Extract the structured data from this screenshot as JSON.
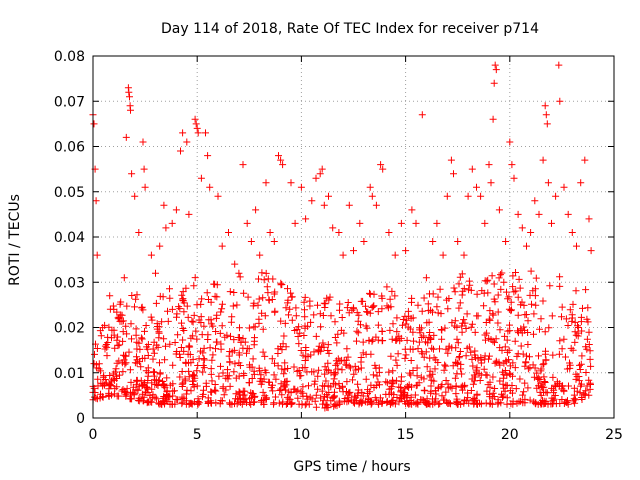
{
  "chart_data": {
    "type": "scatter",
    "title": "Day 114 of 2018, Rate Of TEC Index for receiver p714",
    "xlabel": "GPS time / hours",
    "ylabel": "ROTI / TECUs",
    "xlim": [
      0,
      25
    ],
    "ylim": [
      0,
      0.08
    ],
    "grid": true,
    "marker": "+",
    "color": "#ff0000",
    "x_ticks": [
      {
        "value": 0,
        "label": "0"
      },
      {
        "value": 5,
        "label": "5"
      },
      {
        "value": 10,
        "label": "10"
      },
      {
        "value": 15,
        "label": "15"
      },
      {
        "value": 20,
        "label": "20"
      },
      {
        "value": 25,
        "label": "25"
      }
    ],
    "y_ticks": [
      {
        "value": 0,
        "label": "0"
      },
      {
        "value": 0.01,
        "label": "0.01"
      },
      {
        "value": 0.02,
        "label": "0.02"
      },
      {
        "value": 0.03,
        "label": "0.03"
      },
      {
        "value": 0.04,
        "label": "0.04"
      },
      {
        "value": 0.05,
        "label": "0.05"
      },
      {
        "value": 0.06,
        "label": "0.06"
      },
      {
        "value": 0.07,
        "label": "0.07"
      },
      {
        "value": 0.08,
        "label": "0.08"
      }
    ],
    "series": [
      {
        "name": "ROTI",
        "points": [
          [
            0.0,
            0.067
          ],
          [
            0.05,
            0.065
          ],
          [
            0.1,
            0.055
          ],
          [
            0.15,
            0.048
          ],
          [
            0.2,
            0.036
          ],
          [
            0.3,
            0.012
          ],
          [
            0.5,
            0.009
          ],
          [
            0.8,
            0.027
          ],
          [
            1.0,
            0.024
          ],
          [
            1.2,
            0.016
          ],
          [
            1.5,
            0.031
          ],
          [
            1.6,
            0.062
          ],
          [
            1.7,
            0.073
          ],
          [
            1.72,
            0.072
          ],
          [
            1.75,
            0.071
          ],
          [
            1.78,
            0.069
          ],
          [
            1.8,
            0.068
          ],
          [
            1.85,
            0.054
          ],
          [
            2.0,
            0.049
          ],
          [
            2.2,
            0.041
          ],
          [
            2.4,
            0.061
          ],
          [
            2.45,
            0.055
          ],
          [
            2.5,
            0.051
          ],
          [
            2.8,
            0.036
          ],
          [
            3.0,
            0.032
          ],
          [
            3.2,
            0.038
          ],
          [
            3.4,
            0.047
          ],
          [
            3.5,
            0.042
          ],
          [
            3.8,
            0.043
          ],
          [
            4.0,
            0.046
          ],
          [
            4.2,
            0.059
          ],
          [
            4.3,
            0.063
          ],
          [
            4.5,
            0.061
          ],
          [
            4.6,
            0.045
          ],
          [
            4.9,
            0.066
          ],
          [
            4.95,
            0.065
          ],
          [
            5.0,
            0.064
          ],
          [
            5.05,
            0.063
          ],
          [
            5.2,
            0.053
          ],
          [
            5.4,
            0.063
          ],
          [
            5.5,
            0.058
          ],
          [
            5.6,
            0.051
          ],
          [
            6.0,
            0.049
          ],
          [
            6.2,
            0.038
          ],
          [
            6.5,
            0.041
          ],
          [
            6.8,
            0.034
          ],
          [
            7.0,
            0.032
          ],
          [
            7.2,
            0.056
          ],
          [
            7.4,
            0.043
          ],
          [
            7.6,
            0.039
          ],
          [
            7.8,
            0.046
          ],
          [
            8.0,
            0.036
          ],
          [
            8.3,
            0.052
          ],
          [
            8.5,
            0.041
          ],
          [
            8.7,
            0.039
          ],
          [
            8.9,
            0.058
          ],
          [
            9.0,
            0.057
          ],
          [
            9.1,
            0.056
          ],
          [
            9.5,
            0.052
          ],
          [
            9.7,
            0.043
          ],
          [
            10.0,
            0.051
          ],
          [
            10.2,
            0.044
          ],
          [
            10.5,
            0.048
          ],
          [
            10.7,
            0.053
          ],
          [
            10.9,
            0.054
          ],
          [
            11.0,
            0.055
          ],
          [
            11.1,
            0.047
          ],
          [
            11.3,
            0.049
          ],
          [
            11.5,
            0.042
          ],
          [
            11.8,
            0.041
          ],
          [
            12.0,
            0.036
          ],
          [
            12.3,
            0.047
          ],
          [
            12.5,
            0.037
          ],
          [
            12.8,
            0.043
          ],
          [
            13.0,
            0.039
          ],
          [
            13.3,
            0.051
          ],
          [
            13.4,
            0.049
          ],
          [
            13.6,
            0.047
          ],
          [
            13.8,
            0.056
          ],
          [
            13.9,
            0.055
          ],
          [
            14.2,
            0.041
          ],
          [
            14.5,
            0.036
          ],
          [
            14.8,
            0.043
          ],
          [
            15.0,
            0.037
          ],
          [
            15.3,
            0.046
          ],
          [
            15.5,
            0.043
          ],
          [
            15.8,
            0.067
          ],
          [
            16.0,
            0.031
          ],
          [
            16.3,
            0.039
          ],
          [
            16.5,
            0.043
          ],
          [
            16.8,
            0.036
          ],
          [
            17.0,
            0.049
          ],
          [
            17.2,
            0.057
          ],
          [
            17.3,
            0.054
          ],
          [
            17.5,
            0.039
          ],
          [
            17.8,
            0.036
          ],
          [
            18.0,
            0.049
          ],
          [
            18.2,
            0.055
          ],
          [
            18.4,
            0.051
          ],
          [
            18.6,
            0.049
          ],
          [
            18.8,
            0.043
          ],
          [
            19.0,
            0.056
          ],
          [
            19.1,
            0.052
          ],
          [
            19.2,
            0.066
          ],
          [
            19.25,
            0.074
          ],
          [
            19.3,
            0.078
          ],
          [
            19.35,
            0.077
          ],
          [
            19.5,
            0.046
          ],
          [
            19.8,
            0.039
          ],
          [
            20.0,
            0.061
          ],
          [
            20.1,
            0.056
          ],
          [
            20.2,
            0.053
          ],
          [
            20.4,
            0.045
          ],
          [
            20.6,
            0.042
          ],
          [
            20.8,
            0.038
          ],
          [
            21.0,
            0.041
          ],
          [
            21.2,
            0.048
          ],
          [
            21.4,
            0.045
          ],
          [
            21.6,
            0.057
          ],
          [
            21.7,
            0.069
          ],
          [
            21.75,
            0.067
          ],
          [
            21.8,
            0.065
          ],
          [
            21.85,
            0.052
          ],
          [
            22.0,
            0.043
          ],
          [
            22.2,
            0.049
          ],
          [
            22.35,
            0.078
          ],
          [
            22.4,
            0.07
          ],
          [
            22.6,
            0.051
          ],
          [
            22.8,
            0.045
          ],
          [
            23.0,
            0.041
          ],
          [
            23.2,
            0.038
          ],
          [
            23.4,
            0.052
          ],
          [
            23.6,
            0.057
          ],
          [
            23.8,
            0.044
          ],
          [
            23.9,
            0.037
          ]
        ],
        "band": [
          [
            0.0,
            0.004,
            0.016
          ],
          [
            1.0,
            0.005,
            0.026
          ],
          [
            2.0,
            0.004,
            0.028
          ],
          [
            3.0,
            0.003,
            0.026
          ],
          [
            4.0,
            0.003,
            0.03
          ],
          [
            5.0,
            0.003,
            0.032
          ],
          [
            6.0,
            0.003,
            0.03
          ],
          [
            7.0,
            0.003,
            0.032
          ],
          [
            8.0,
            0.003,
            0.033
          ],
          [
            9.0,
            0.003,
            0.03
          ],
          [
            10.0,
            0.003,
            0.026
          ],
          [
            11.0,
            0.002,
            0.03
          ],
          [
            12.0,
            0.003,
            0.026
          ],
          [
            13.0,
            0.003,
            0.028
          ],
          [
            14.0,
            0.003,
            0.03
          ],
          [
            15.0,
            0.003,
            0.028
          ],
          [
            16.0,
            0.003,
            0.027
          ],
          [
            17.0,
            0.003,
            0.03
          ],
          [
            18.0,
            0.003,
            0.033
          ],
          [
            19.0,
            0.003,
            0.034
          ],
          [
            20.0,
            0.003,
            0.032
          ],
          [
            21.0,
            0.003,
            0.033
          ],
          [
            22.0,
            0.003,
            0.032
          ],
          [
            23.0,
            0.003,
            0.03
          ],
          [
            23.9,
            0.005,
            0.028
          ]
        ],
        "band_density": 1600,
        "density_seed": 714
      }
    ]
  }
}
